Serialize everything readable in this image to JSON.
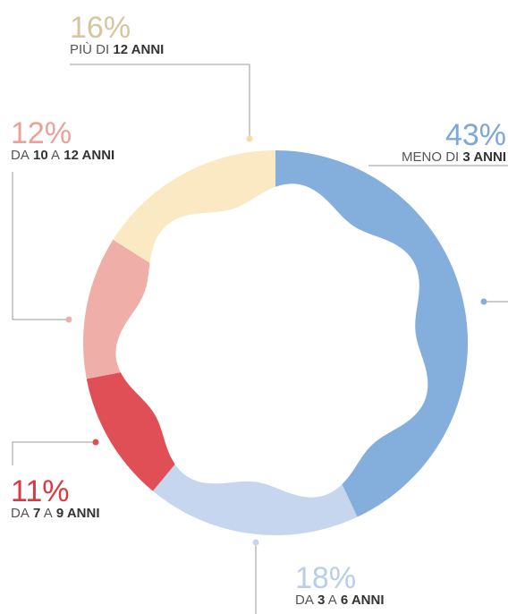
{
  "chart_data": {
    "type": "pie",
    "donut": true,
    "categories": [
      "MENO DI 3 ANNI",
      "DA 3 A 6 ANNI",
      "DA 7 A 9 ANNI",
      "DA 10 A 12 ANNI",
      "PIÙ DI 12 ANNI"
    ],
    "values": [
      43,
      18,
      11,
      12,
      16
    ],
    "value_labels": [
      "43%",
      "18%",
      "11%",
      "12%",
      "16%"
    ],
    "colors": [
      "#84aedb",
      "#c5d6ee",
      "#e04f55",
      "#efaea8",
      "#fbe9c4"
    ],
    "label_colors": [
      "#7ba7d9",
      "#b9cde9",
      "#d9393f",
      "#ee9f97",
      "#d8c5a0"
    ]
  }
}
